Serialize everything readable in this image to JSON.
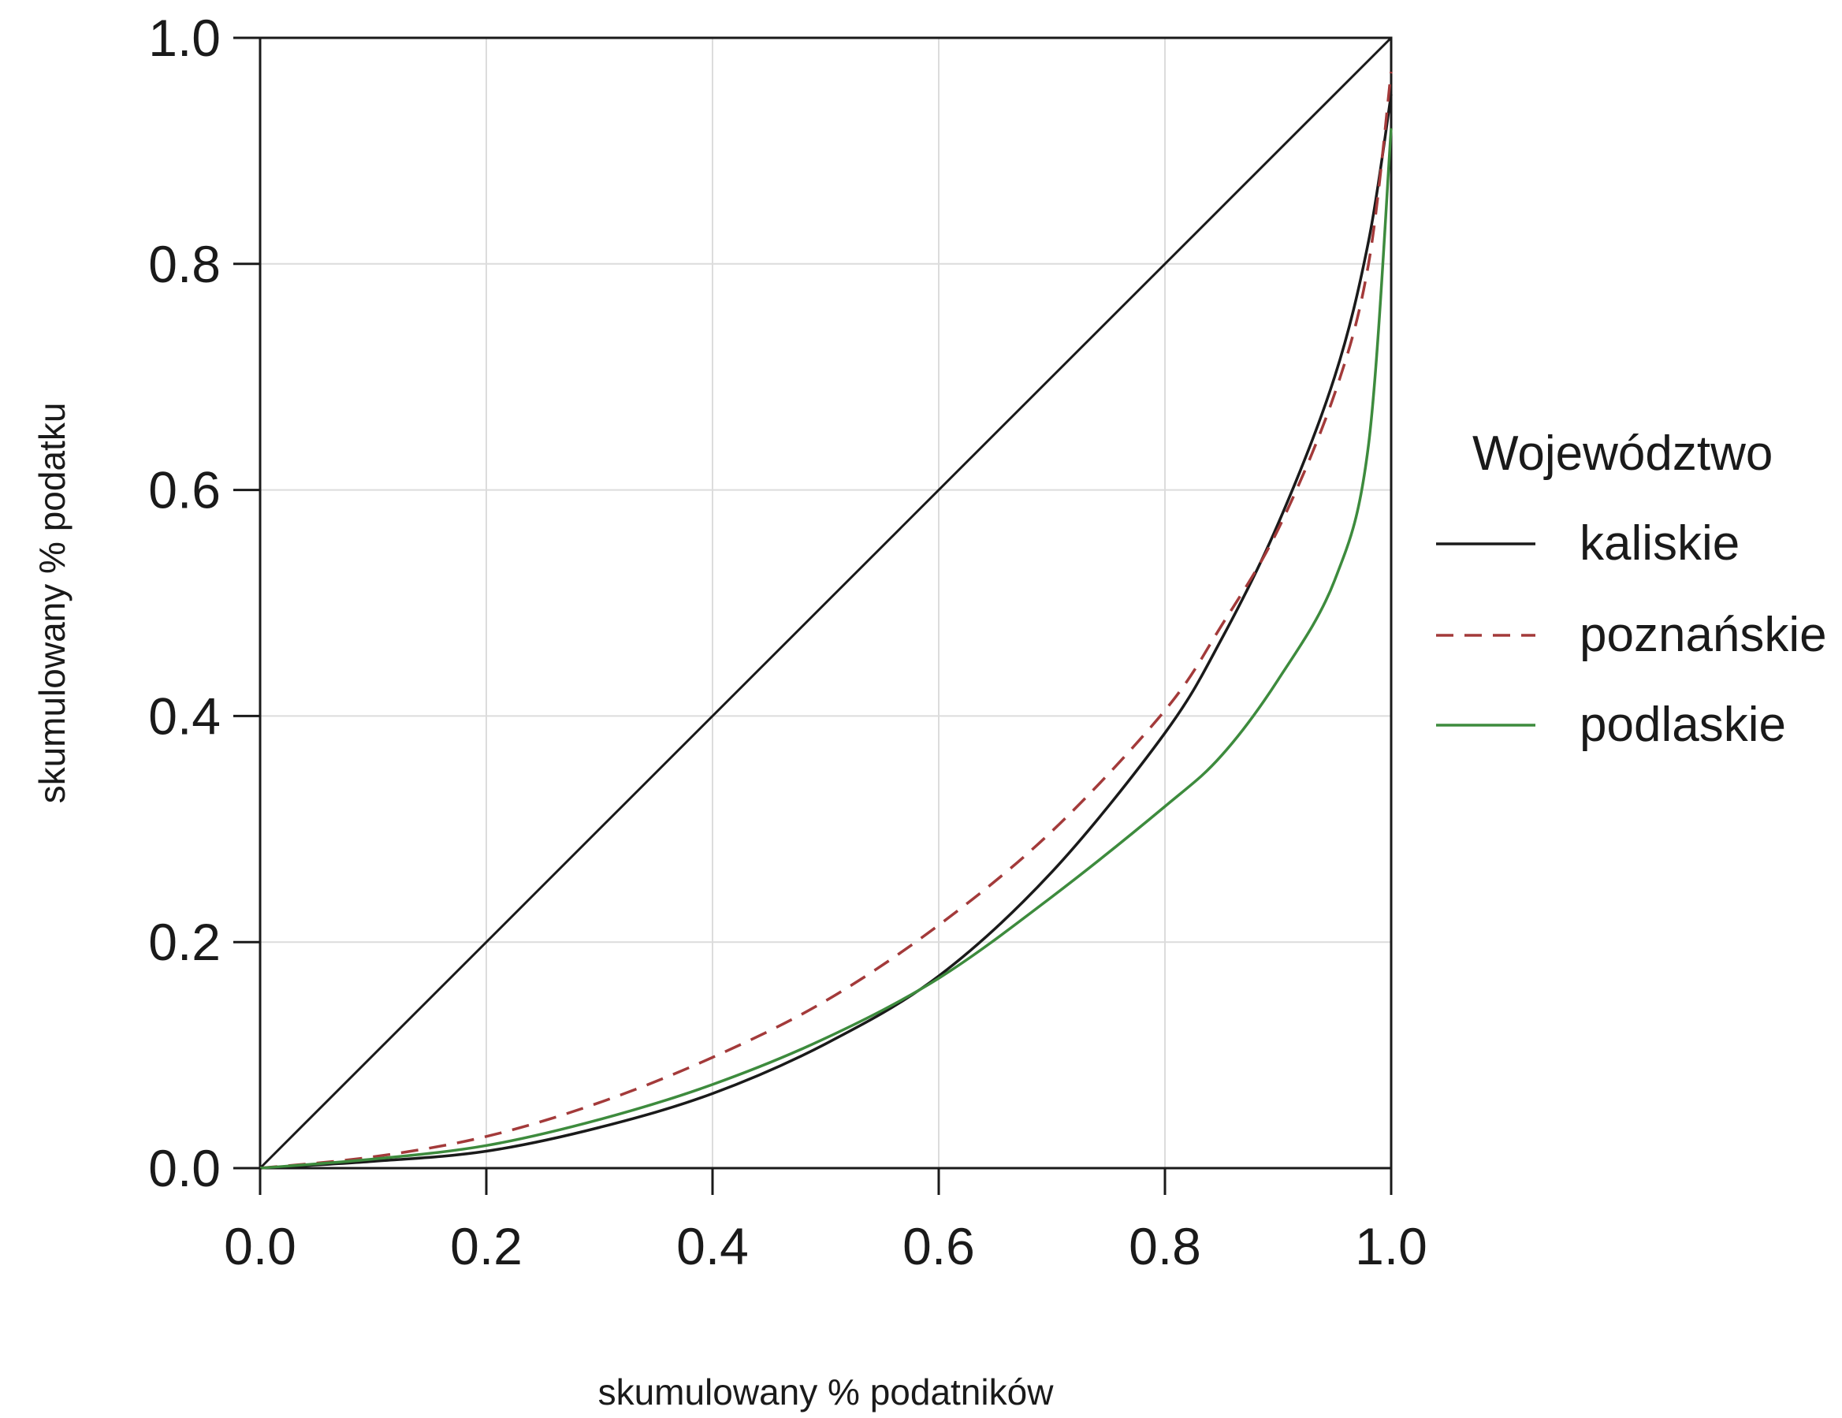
{
  "chart_data": {
    "type": "line",
    "title": "",
    "xlabel": "skumulowany % podatników",
    "ylabel": "skumulowany % podatku",
    "xlim": [
      0,
      1
    ],
    "ylim": [
      0,
      1
    ],
    "xticks": [
      "0.0",
      "0.2",
      "0.4",
      "0.6",
      "0.8",
      "1.0"
    ],
    "yticks": [
      "0.0",
      "0.2",
      "0.4",
      "0.6",
      "0.8",
      "1.0"
    ],
    "grid": true,
    "legend": {
      "title": "Województwo",
      "position": "right"
    },
    "reference_line": {
      "x": [
        0,
        1
      ],
      "y": [
        0,
        1
      ],
      "color": "#1a1a1a"
    },
    "series": [
      {
        "name": "kaliskie",
        "style": "solid",
        "color": "#1a1a1a",
        "x": [
          0,
          0.1,
          0.2,
          0.3,
          0.4,
          0.5,
          0.6,
          0.7,
          0.8,
          0.85,
          0.9,
          0.95,
          0.98,
          1.0
        ],
        "y": [
          0,
          0.006,
          0.015,
          0.036,
          0.066,
          0.11,
          0.17,
          0.262,
          0.385,
          0.468,
          0.57,
          0.7,
          0.82,
          0.95
        ]
      },
      {
        "name": "poznańskie",
        "style": "dashed",
        "color": "#a33a3a",
        "x": [
          0,
          0.1,
          0.2,
          0.3,
          0.4,
          0.5,
          0.6,
          0.7,
          0.8,
          0.85,
          0.9,
          0.95,
          0.98,
          1.0
        ],
        "y": [
          0,
          0.01,
          0.028,
          0.058,
          0.098,
          0.148,
          0.215,
          0.298,
          0.405,
          0.48,
          0.565,
          0.685,
          0.8,
          0.97
        ]
      },
      {
        "name": "podlaskie",
        "style": "solid",
        "color": "#3d8b3d",
        "x": [
          0,
          0.1,
          0.2,
          0.3,
          0.4,
          0.5,
          0.6,
          0.7,
          0.8,
          0.85,
          0.9,
          0.95,
          0.98,
          1.0
        ],
        "y": [
          0,
          0.008,
          0.02,
          0.043,
          0.074,
          0.115,
          0.168,
          0.24,
          0.32,
          0.365,
          0.432,
          0.52,
          0.64,
          0.92
        ]
      }
    ]
  }
}
